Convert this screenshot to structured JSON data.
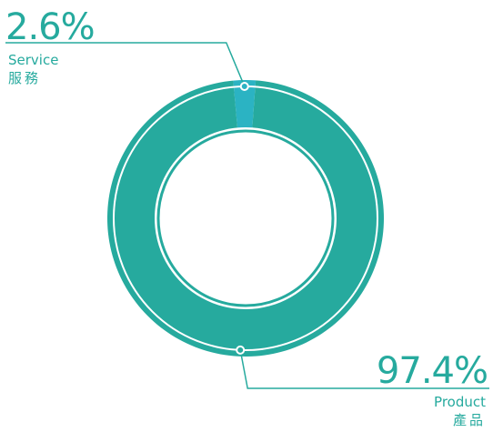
{
  "chart_data": {
    "type": "pie",
    "donut": true,
    "categories": [
      "Service",
      "Product"
    ],
    "values": [
      2.6,
      97.4
    ],
    "value_labels": [
      "2.6%",
      "97.4%"
    ],
    "category_labels_zh": [
      "服務",
      "產品"
    ],
    "colors": [
      "#2bb3c3",
      "#26aa9e"
    ],
    "outline_color": "#ffffff"
  }
}
